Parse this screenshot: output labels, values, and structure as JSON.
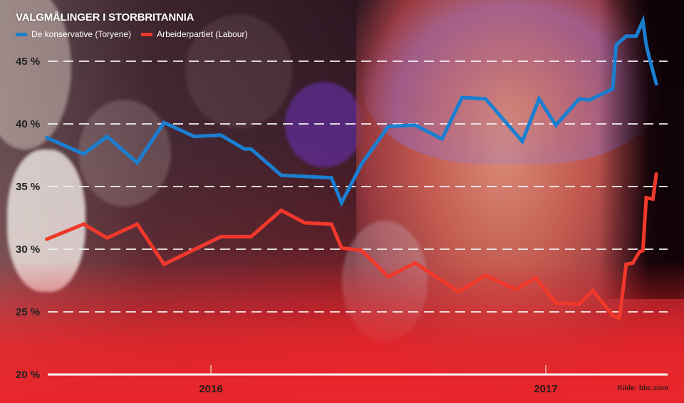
{
  "header": {
    "title": "VALGMÅLINGER I STORBRITANNIA"
  },
  "legend": [
    {
      "label": "De konservative (Toryene)",
      "color": "#1a7fd0"
    },
    {
      "label": "Arbeiderpartiet (Labour)",
      "color": "#f0382b"
    }
  ],
  "source": "Kilde: bbc.com",
  "colors": {
    "conservative": "#1a7fd0",
    "labour": "#f0382b",
    "grid": "#ffffff",
    "axis_text": "#222222"
  },
  "chart_data": {
    "type": "line",
    "title": "VALGMÅLINGER I STORBRITANNIA",
    "xlabel": "",
    "ylabel": "",
    "ylim": [
      20,
      48
    ],
    "yticks": [
      20,
      25,
      30,
      35,
      40,
      45
    ],
    "ytick_labels": [
      "20 %",
      "25 %",
      "30 %",
      "35 %",
      "40 %",
      "45 %"
    ],
    "xticks": [
      2016,
      2017
    ],
    "xtick_labels": [
      "2016",
      "2017"
    ],
    "xlim": [
      2015.5,
      2017.34
    ],
    "grid": "horizontal dashed",
    "legend_position": "top-left",
    "series": [
      {
        "name": "De konservative (Toryene)",
        "color": "#1a7fd0",
        "x": [
          2015.51,
          2015.62,
          2015.69,
          2015.78,
          2015.86,
          2015.95,
          2016.03,
          2016.1,
          2016.12,
          2016.21,
          2016.36,
          2016.39,
          2016.45,
          2016.53,
          2016.61,
          2016.69,
          2016.75,
          2016.82,
          2016.93,
          2016.98,
          2017.03,
          2017.1,
          2017.13,
          2017.2,
          2017.21,
          2017.24,
          2017.27,
          2017.29,
          2017.3,
          2017.31,
          2017.33
        ],
        "values": [
          38.9,
          37.6,
          39.0,
          36.9,
          40.1,
          39.0,
          39.1,
          38.0,
          38.0,
          35.9,
          35.7,
          33.7,
          36.8,
          39.8,
          39.9,
          38.8,
          42.1,
          42.0,
          38.6,
          42.0,
          39.9,
          42.0,
          41.9,
          42.8,
          46.3,
          47.0,
          47.0,
          48.2,
          46.3,
          45.2,
          43.2
        ]
      },
      {
        "name": "Arbeiderpartiet (Labour)",
        "color": "#f0382b",
        "x": [
          2015.51,
          2015.62,
          2015.69,
          2015.78,
          2015.86,
          2016.03,
          2016.12,
          2016.21,
          2016.28,
          2016.36,
          2016.39,
          2016.45,
          2016.53,
          2016.61,
          2016.74,
          2016.82,
          2016.91,
          2016.97,
          2017.03,
          2017.1,
          2017.14,
          2017.2,
          2017.22,
          2017.24,
          2017.26,
          2017.28,
          2017.29,
          2017.3,
          2017.32,
          2017.33
        ],
        "values": [
          30.8,
          32.0,
          30.9,
          32.0,
          28.8,
          31.0,
          31.0,
          33.1,
          32.1,
          32.0,
          30.1,
          29.9,
          27.8,
          28.9,
          26.6,
          27.9,
          26.8,
          27.7,
          25.7,
          25.6,
          26.7,
          24.7,
          24.5,
          28.8,
          28.9,
          29.8,
          29.9,
          34.1,
          34.0,
          36.0
        ]
      }
    ]
  }
}
